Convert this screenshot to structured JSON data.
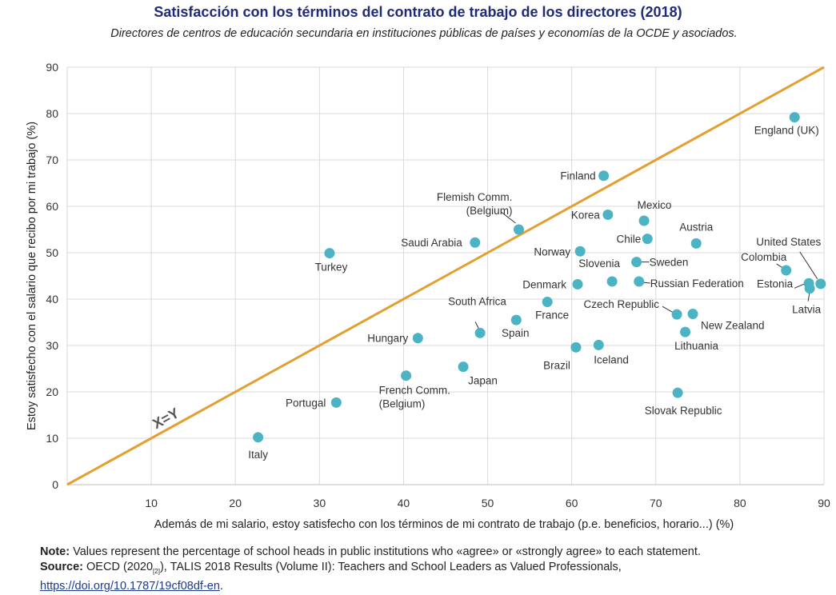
{
  "title": "Satisfacción con los términos del contrato de trabajo de los directores (2018)",
  "subtitle": "Directores de centros de educación secundaria en instituciones públicas de países y economías de la OCDE y asociados.",
  "footnote": {
    "note_label": "Note:",
    "note_text": "Values represent the percentage of school heads in public institutions who «agree» or «strongly agree» to each statement.",
    "source_label": "Source:",
    "source_text_1": "OECD (2020",
    "source_sub": "[2]",
    "source_text_2": "), TALIS 2018 Results (Volume II): Teachers and School Leaders as Valued Professionals,",
    "link_text": "https://doi.org/10.1787/19cf08df-en",
    "link_suffix": "."
  },
  "colors": {
    "point": "#4bb3c3",
    "line": "#e3a030",
    "grid": "#d9d9d9",
    "title": "#1f2a7a"
  },
  "chart_data": {
    "type": "scatter",
    "title": "Satisfacción con los términos del contrato de trabajo de los directores (2018)",
    "xlabel": "Además de mi salario, estoy satisfecho con los términos de mi contrato de trabajo (p.e. beneficios, horario...) (%)",
    "ylabel": "Estoy satisfecho con el salario que recibo por mi trabajo (%)",
    "xlim": [
      0,
      90
    ],
    "ylim": [
      0,
      90
    ],
    "xticks": [
      "10",
      "20",
      "30",
      "40",
      "50",
      "60",
      "70",
      "80",
      "90"
    ],
    "yticks": [
      "0",
      "10",
      "20",
      "30",
      "40",
      "50",
      "60",
      "70",
      "80",
      "90"
    ],
    "grid": true,
    "reference_line_label": "X=Y",
    "points": [
      {
        "name": "England (UK)",
        "x": 86.5,
        "y": 79.2
      },
      {
        "name": "Finland",
        "x": 63.8,
        "y": 66.6
      },
      {
        "name": "Flemish Comm. (Belgium)",
        "x": 53.7,
        "y": 55.0
      },
      {
        "name": "Korea",
        "x": 64.3,
        "y": 58.2
      },
      {
        "name": "Mexico",
        "x": 68.6,
        "y": 56.9
      },
      {
        "name": "Chile",
        "x": 69.0,
        "y": 53.0
      },
      {
        "name": "Austria",
        "x": 74.8,
        "y": 52.0
      },
      {
        "name": "United States",
        "x": 89.6,
        "y": 43.3
      },
      {
        "name": "Saudi Arabia",
        "x": 48.5,
        "y": 52.2
      },
      {
        "name": "Norway",
        "x": 61.0,
        "y": 50.3
      },
      {
        "name": "Turkey",
        "x": 31.2,
        "y": 49.9
      },
      {
        "name": "Sweden",
        "x": 67.7,
        "y": 48.0
      },
      {
        "name": "Colombia",
        "x": 85.5,
        "y": 46.2
      },
      {
        "name": "Slovenia",
        "x": 64.8,
        "y": 43.8
      },
      {
        "name": "Russian Federation",
        "x": 68.0,
        "y": 43.8
      },
      {
        "name": "Denmark",
        "x": 60.7,
        "y": 43.2
      },
      {
        "name": "Estonia",
        "x": 88.2,
        "y": 43.4
      },
      {
        "name": "Latvia",
        "x": 88.3,
        "y": 42.3
      },
      {
        "name": "France",
        "x": 57.1,
        "y": 39.4
      },
      {
        "name": "Czech Republic",
        "x": 72.5,
        "y": 36.7
      },
      {
        "name": "New Zealand",
        "x": 74.4,
        "y": 36.8
      },
      {
        "name": "Spain",
        "x": 53.4,
        "y": 35.5
      },
      {
        "name": "South Africa",
        "x": 49.1,
        "y": 32.7
      },
      {
        "name": "Lithuania",
        "x": 73.5,
        "y": 32.9
      },
      {
        "name": "Hungary",
        "x": 41.7,
        "y": 31.6
      },
      {
        "name": "Iceland",
        "x": 63.2,
        "y": 30.1
      },
      {
        "name": "Brazil",
        "x": 60.5,
        "y": 29.6
      },
      {
        "name": "Japan",
        "x": 47.1,
        "y": 25.4
      },
      {
        "name": "French Comm. (Belgium)",
        "x": 40.3,
        "y": 23.5
      },
      {
        "name": "Slovak Republic",
        "x": 72.6,
        "y": 19.8
      },
      {
        "name": "Portugal",
        "x": 32.0,
        "y": 17.7
      },
      {
        "name": "Italy",
        "x": 22.7,
        "y": 10.2
      }
    ]
  }
}
